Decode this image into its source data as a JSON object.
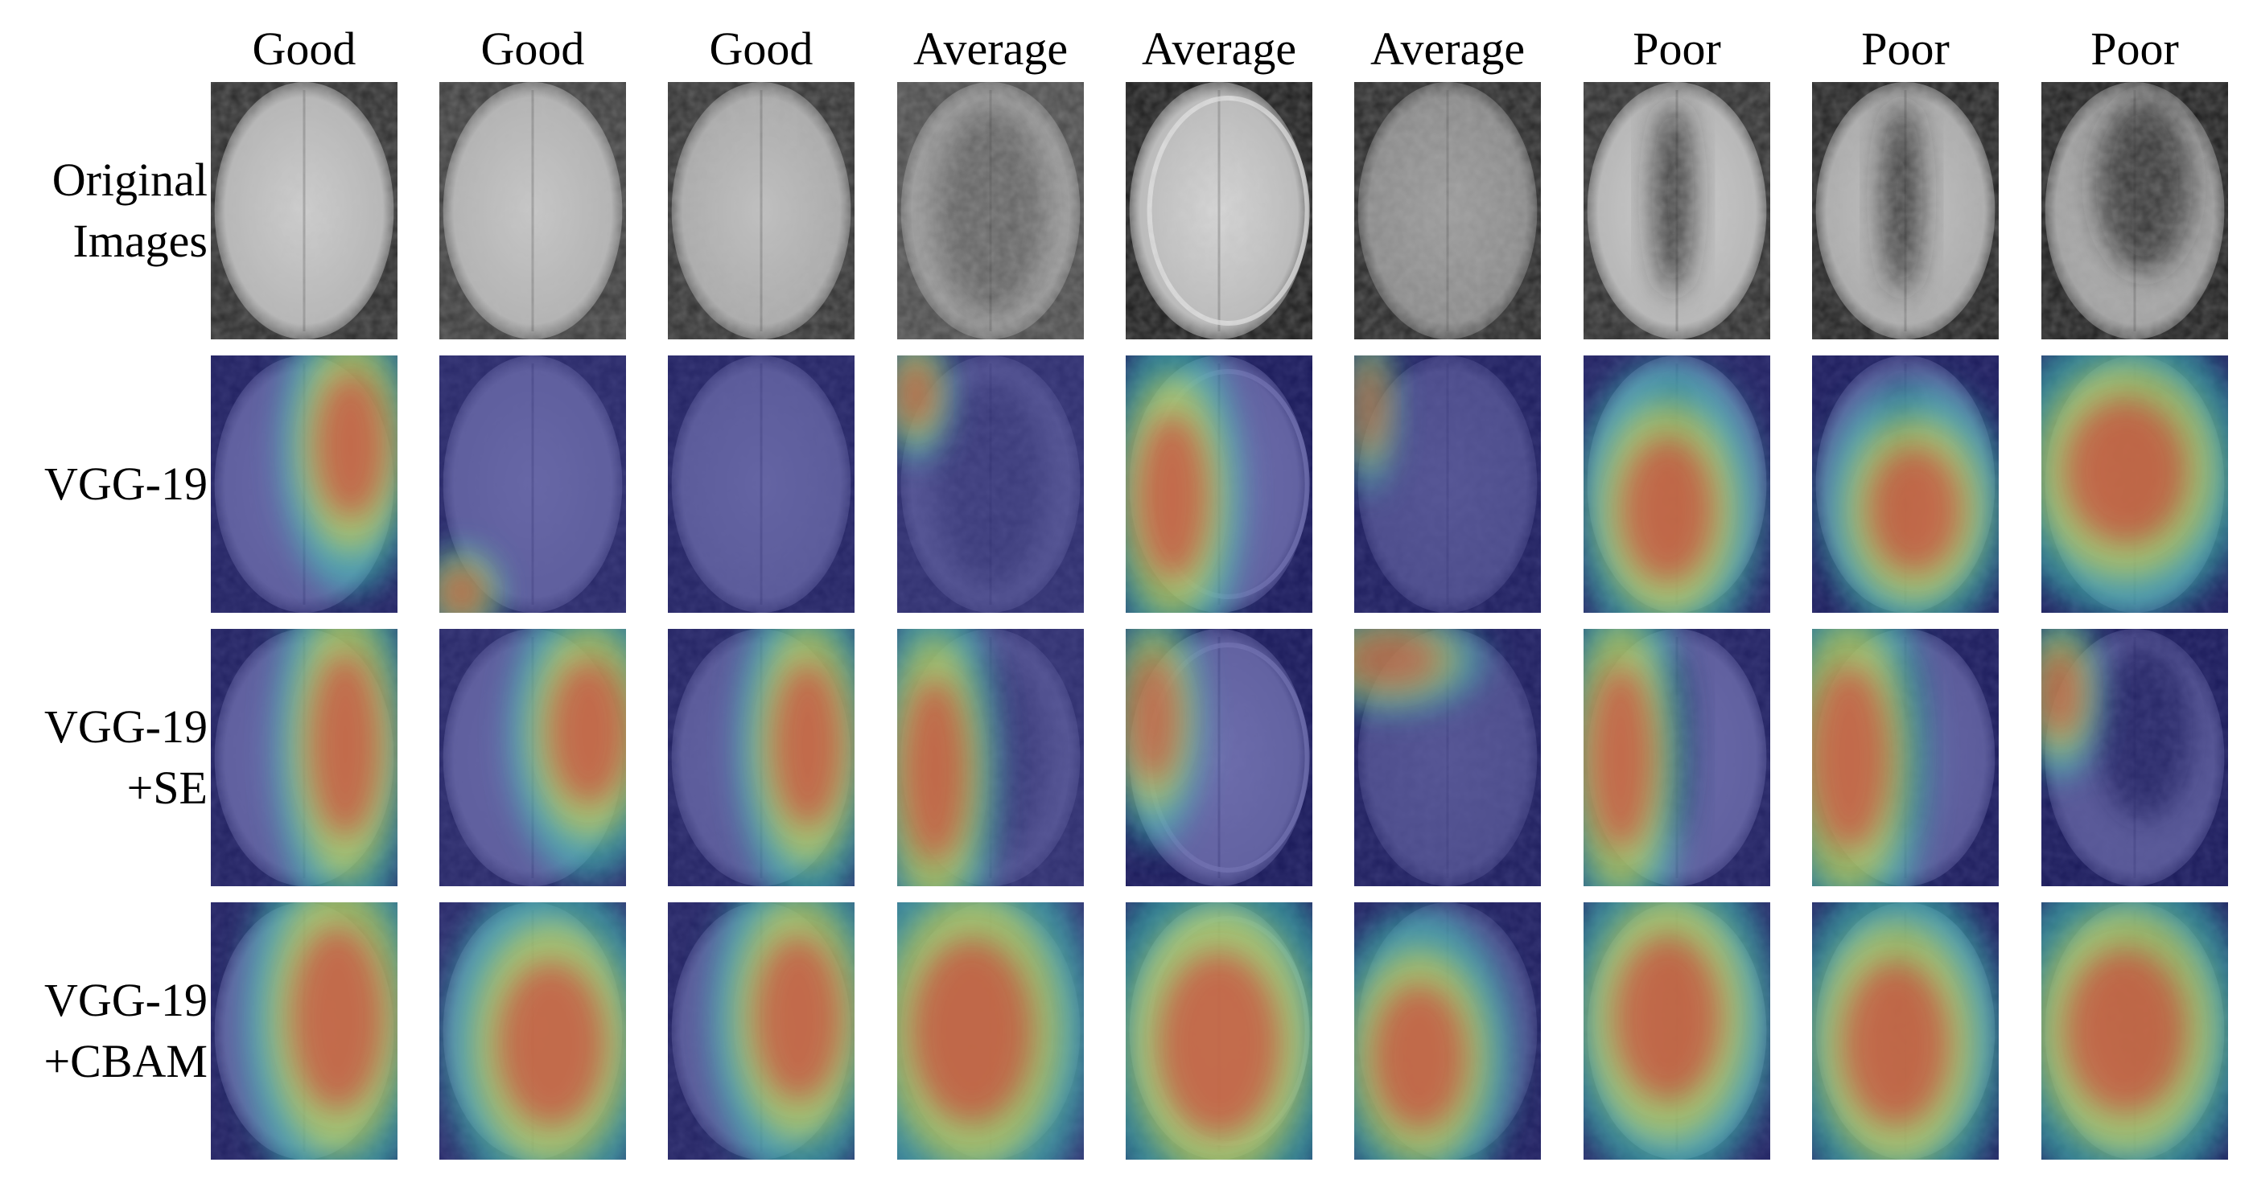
{
  "figure": {
    "columns": [
      "Good",
      "Good",
      "Good",
      "Average",
      "Average",
      "Average",
      "Poor",
      "Poor",
      "Poor"
    ],
    "rows": [
      {
        "label_lines": [
          "Original",
          "Images"
        ],
        "kind": "original"
      },
      {
        "label_lines": [
          "VGG-19"
        ],
        "kind": "heatmap"
      },
      {
        "label_lines": [
          "VGG-19",
          "+SE"
        ],
        "kind": "heatmap"
      },
      {
        "label_lines": [
          "VGG-19",
          "+CBAM"
        ],
        "kind": "heatmap"
      }
    ]
  },
  "colors": {
    "background": "#ffffff",
    "jet_low": "#1a1a8c",
    "jet_mid": "#3fd0c0",
    "jet_high": "#d83030"
  }
}
